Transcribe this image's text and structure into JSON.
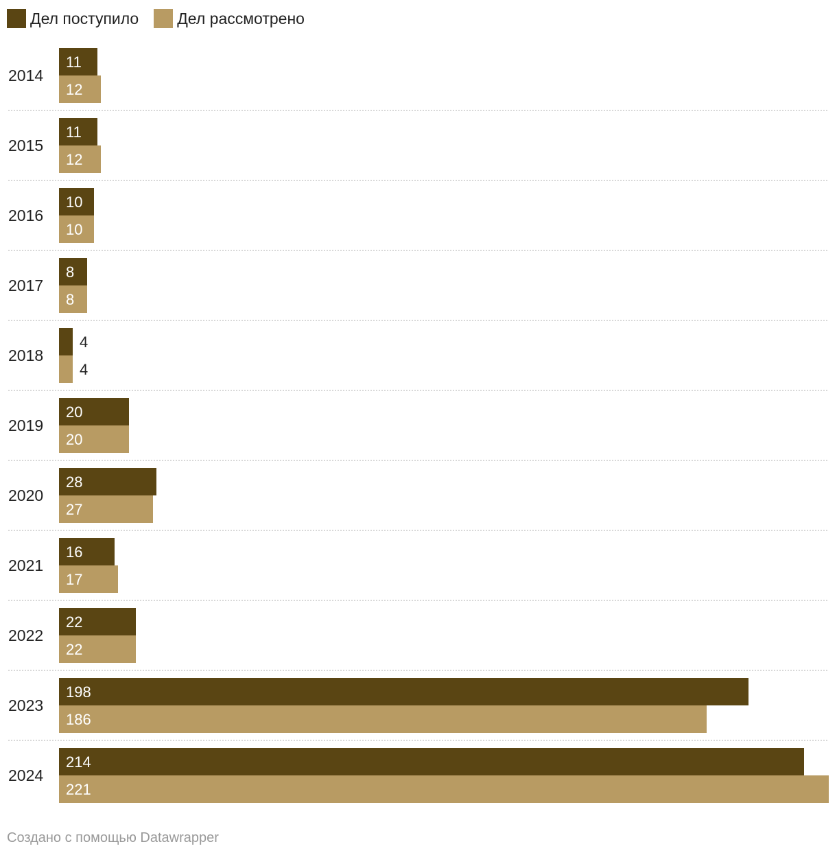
{
  "colors": {
    "received": "#5a4513",
    "reviewed": "#b89b63",
    "grid": "#cccccc",
    "text": "#222222",
    "footer": "#999999"
  },
  "legend": {
    "received_label": "Дел поступило",
    "reviewed_label": "Дел рассмотрено"
  },
  "footer": {
    "credit": "Создано с помощью Datawrapper"
  },
  "chart_data": {
    "type": "bar",
    "orientation": "horizontal",
    "title": "",
    "xlabel": "",
    "ylabel": "",
    "categories": [
      "2014",
      "2015",
      "2016",
      "2017",
      "2018",
      "2019",
      "2020",
      "2021",
      "2022",
      "2023",
      "2024"
    ],
    "series": [
      {
        "name": "Дел поступило",
        "values": [
          11,
          11,
          10,
          8,
          4,
          20,
          28,
          16,
          22,
          198,
          214
        ]
      },
      {
        "name": "Дел рассмотрено",
        "values": [
          12,
          12,
          10,
          8,
          4,
          20,
          27,
          17,
          22,
          186,
          221
        ]
      }
    ],
    "xlim": [
      0,
      221
    ],
    "grid": false,
    "legend": "top-left"
  }
}
